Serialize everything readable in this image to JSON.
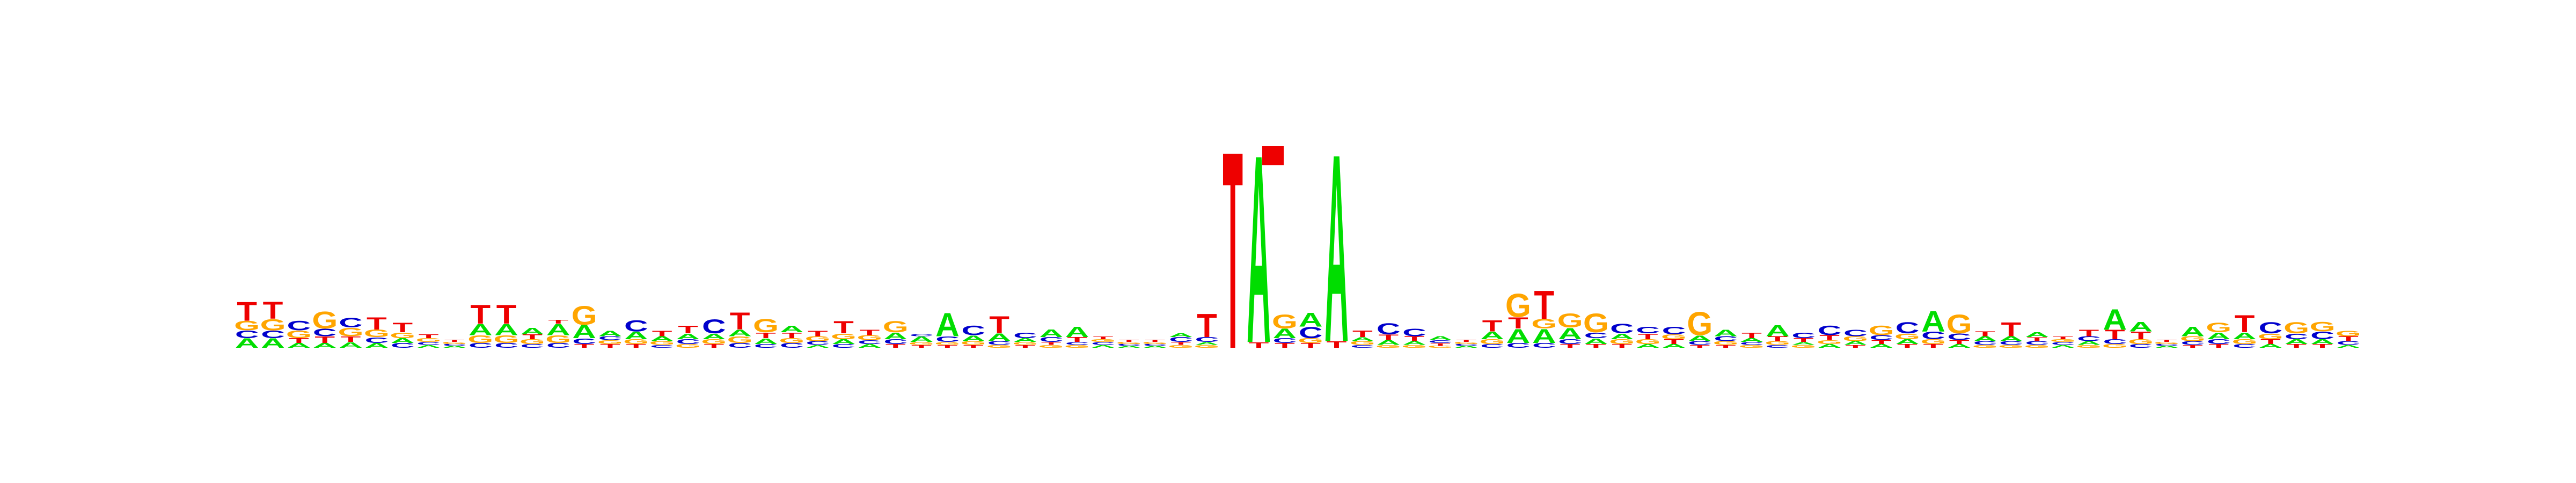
{
  "colors": {
    "A": "#00dd00",
    "C": "#0000cc",
    "G": "#ffa500",
    "T": "#ee0000"
  },
  "logo": {
    "columns": [
      [
        [
          "A",
          0.1
        ],
        [
          "C",
          0.08
        ],
        [
          "G",
          0.1
        ],
        [
          "T",
          0.2
        ]
      ],
      [
        [
          "A",
          0.1
        ],
        [
          "C",
          0.08
        ],
        [
          "G",
          0.12
        ],
        [
          "T",
          0.18
        ]
      ],
      [
        [
          "A",
          0.05
        ],
        [
          "T",
          0.05
        ],
        [
          "G",
          0.08
        ],
        [
          "C",
          0.1
        ]
      ],
      [
        [
          "A",
          0.05
        ],
        [
          "T",
          0.07
        ],
        [
          "C",
          0.08
        ],
        [
          "G",
          0.18
        ]
      ],
      [
        [
          "A",
          0.06
        ],
        [
          "T",
          0.06
        ],
        [
          "G",
          0.09
        ],
        [
          "C",
          0.1
        ]
      ],
      [
        [
          "A",
          0.05
        ],
        [
          "C",
          0.06
        ],
        [
          "G",
          0.08
        ],
        [
          "T",
          0.13
        ]
      ],
      [
        [
          "C",
          0.05
        ],
        [
          "A",
          0.05
        ],
        [
          "G",
          0.06
        ],
        [
          "T",
          0.1
        ]
      ],
      [
        [
          "A",
          0.03
        ],
        [
          "C",
          0.03
        ],
        [
          "G",
          0.04
        ],
        [
          "T",
          0.04
        ]
      ],
      [
        [
          "A",
          0.02
        ],
        [
          "C",
          0.02
        ],
        [
          "G",
          0.02
        ],
        [
          "T",
          0.02
        ]
      ],
      [
        [
          "C",
          0.05
        ],
        [
          "G",
          0.08
        ],
        [
          "A",
          0.12
        ],
        [
          "T",
          0.2
        ]
      ],
      [
        [
          "C",
          0.05
        ],
        [
          "G",
          0.08
        ],
        [
          "A",
          0.12
        ],
        [
          "T",
          0.2
        ]
      ],
      [
        [
          "C",
          0.04
        ],
        [
          "G",
          0.05
        ],
        [
          "T",
          0.05
        ],
        [
          "A",
          0.07
        ]
      ],
      [
        [
          "C",
          0.05
        ],
        [
          "G",
          0.08
        ],
        [
          "A",
          0.12
        ],
        [
          "T",
          0.04
        ]
      ],
      [
        [
          "T",
          0.04
        ],
        [
          "C",
          0.06
        ],
        [
          "A",
          0.14
        ],
        [
          "G",
          0.2
        ]
      ],
      [
        [
          "T",
          0.04
        ],
        [
          "G",
          0.04
        ],
        [
          "C",
          0.04
        ],
        [
          "A",
          0.06
        ]
      ],
      [
        [
          "T",
          0.04
        ],
        [
          "G",
          0.05
        ],
        [
          "A",
          0.08
        ],
        [
          "C",
          0.12
        ]
      ],
      [
        [
          "C",
          0.03
        ],
        [
          "G",
          0.04
        ],
        [
          "A",
          0.05
        ],
        [
          "T",
          0.06
        ]
      ],
      [
        [
          "G",
          0.04
        ],
        [
          "C",
          0.05
        ],
        [
          "A",
          0.06
        ],
        [
          "T",
          0.08
        ]
      ],
      [
        [
          "T",
          0.04
        ],
        [
          "G",
          0.05
        ],
        [
          "A",
          0.06
        ],
        [
          "C",
          0.15
        ]
      ],
      [
        [
          "C",
          0.05
        ],
        [
          "G",
          0.07
        ],
        [
          "A",
          0.07
        ],
        [
          "T",
          0.18
        ]
      ],
      [
        [
          "C",
          0.04
        ],
        [
          "A",
          0.06
        ],
        [
          "T",
          0.06
        ],
        [
          "G",
          0.14
        ]
      ],
      [
        [
          "C",
          0.05
        ],
        [
          "G",
          0.05
        ],
        [
          "T",
          0.06
        ],
        [
          "A",
          0.07
        ]
      ],
      [
        [
          "A",
          0.03
        ],
        [
          "C",
          0.04
        ],
        [
          "G",
          0.05
        ],
        [
          "T",
          0.06
        ]
      ],
      [
        [
          "C",
          0.04
        ],
        [
          "A",
          0.05
        ],
        [
          "G",
          0.06
        ],
        [
          "T",
          0.13
        ]
      ],
      [
        [
          "A",
          0.04
        ],
        [
          "C",
          0.04
        ],
        [
          "G",
          0.05
        ],
        [
          "T",
          0.06
        ]
      ],
      [
        [
          "T",
          0.04
        ],
        [
          "C",
          0.05
        ],
        [
          "A",
          0.07
        ],
        [
          "G",
          0.12
        ]
      ],
      [
        [
          "T",
          0.03
        ],
        [
          "G",
          0.03
        ],
        [
          "A",
          0.06
        ],
        [
          "C",
          0.02
        ]
      ],
      [
        [
          "T",
          0.03
        ],
        [
          "G",
          0.03
        ],
        [
          "C",
          0.06
        ],
        [
          "A",
          0.25
        ]
      ],
      [
        [
          "T",
          0.03
        ],
        [
          "G",
          0.04
        ],
        [
          "A",
          0.06
        ],
        [
          "C",
          0.1
        ]
      ],
      [
        [
          "G",
          0.03
        ],
        [
          "C",
          0.04
        ],
        [
          "A",
          0.08
        ],
        [
          "T",
          0.18
        ]
      ],
      [
        [
          "T",
          0.03
        ],
        [
          "G",
          0.03
        ],
        [
          "A",
          0.04
        ],
        [
          "C",
          0.06
        ]
      ],
      [
        [
          "G",
          0.03
        ],
        [
          "T",
          0.03
        ],
        [
          "C",
          0.05
        ],
        [
          "A",
          0.08
        ]
      ],
      [
        [
          "G",
          0.03
        ],
        [
          "C",
          0.03
        ],
        [
          "T",
          0.05
        ],
        [
          "A",
          0.11
        ]
      ],
      [
        [
          "A",
          0.03
        ],
        [
          "C",
          0.03
        ],
        [
          "G",
          0.03
        ],
        [
          "T",
          0.03
        ]
      ],
      [
        [
          "A",
          0.02
        ],
        [
          "C",
          0.02
        ],
        [
          "G",
          0.02
        ],
        [
          "T",
          0.02
        ]
      ],
      [
        [
          "A",
          0.02
        ],
        [
          "C",
          0.02
        ],
        [
          "G",
          0.02
        ],
        [
          "T",
          0.02
        ]
      ],
      [
        [
          "G",
          0.03
        ],
        [
          "T",
          0.03
        ],
        [
          "C",
          0.05
        ],
        [
          "A",
          0.04
        ]
      ],
      [
        [
          "G",
          0.03
        ],
        [
          "A",
          0.03
        ],
        [
          "C",
          0.05
        ],
        [
          "T",
          0.25
        ]
      ],
      [
        [
          "T",
          2.1
        ]
      ],
      [
        [
          "T",
          0.06
        ],
        [
          "A",
          2.0
        ]
      ],
      [
        [
          "T",
          0.05
        ],
        [
          "C",
          0.05
        ],
        [
          "A",
          0.1
        ],
        [
          "G",
          0.15
        ]
      ],
      [
        [
          "T",
          0.05
        ],
        [
          "G",
          0.05
        ],
        [
          "C",
          0.12
        ],
        [
          "A",
          0.15
        ]
      ],
      [
        [
          "T",
          0.07
        ],
        [
          "A",
          2.0
        ]
      ],
      [
        [
          "C",
          0.03
        ],
        [
          "G",
          0.04
        ],
        [
          "A",
          0.04
        ],
        [
          "T",
          0.07
        ]
      ],
      [
        [
          "G",
          0.03
        ],
        [
          "A",
          0.05
        ],
        [
          "T",
          0.06
        ],
        [
          "C",
          0.12
        ]
      ],
      [
        [
          "G",
          0.03
        ],
        [
          "A",
          0.04
        ],
        [
          "T",
          0.05
        ],
        [
          "C",
          0.08
        ]
      ],
      [
        [
          "G",
          0.02
        ],
        [
          "T",
          0.03
        ],
        [
          "C",
          0.03
        ],
        [
          "A",
          0.04
        ]
      ],
      [
        [
          "A",
          0.02
        ],
        [
          "C",
          0.02
        ],
        [
          "G",
          0.02
        ],
        [
          "T",
          0.02
        ]
      ],
      [
        [
          "C",
          0.04
        ],
        [
          "G",
          0.05
        ],
        [
          "A",
          0.08
        ],
        [
          "T",
          0.12
        ]
      ],
      [
        [
          "C",
          0.05
        ],
        [
          "A",
          0.15
        ],
        [
          "T",
          0.12
        ],
        [
          "G",
          0.25
        ]
      ],
      [
        [
          "C",
          0.05
        ],
        [
          "A",
          0.15
        ],
        [
          "G",
          0.1
        ],
        [
          "T",
          0.3
        ]
      ],
      [
        [
          "T",
          0.04
        ],
        [
          "C",
          0.05
        ],
        [
          "A",
          0.12
        ],
        [
          "G",
          0.15
        ]
      ],
      [
        [
          "T",
          0.04
        ],
        [
          "A",
          0.06
        ],
        [
          "C",
          0.06
        ],
        [
          "G",
          0.2
        ]
      ],
      [
        [
          "T",
          0.04
        ],
        [
          "G",
          0.05
        ],
        [
          "A",
          0.06
        ],
        [
          "C",
          0.1
        ]
      ],
      [
        [
          "A",
          0.04
        ],
        [
          "G",
          0.05
        ],
        [
          "T",
          0.06
        ],
        [
          "C",
          0.07
        ]
      ],
      [
        [
          "A",
          0.04
        ],
        [
          "T",
          0.05
        ],
        [
          "G",
          0.05
        ],
        [
          "C",
          0.08
        ]
      ],
      [
        [
          "T",
          0.03
        ],
        [
          "C",
          0.04
        ],
        [
          "A",
          0.06
        ],
        [
          "G",
          0.25
        ]
      ],
      [
        [
          "T",
          0.03
        ],
        [
          "G",
          0.04
        ],
        [
          "C",
          0.05
        ],
        [
          "A",
          0.07
        ]
      ],
      [
        [
          "G",
          0.03
        ],
        [
          "C",
          0.03
        ],
        [
          "A",
          0.04
        ],
        [
          "T",
          0.06
        ]
      ],
      [
        [
          "C",
          0.03
        ],
        [
          "G",
          0.04
        ],
        [
          "T",
          0.05
        ],
        [
          "A",
          0.12
        ]
      ],
      [
        [
          "G",
          0.03
        ],
        [
          "A",
          0.03
        ],
        [
          "T",
          0.04
        ],
        [
          "C",
          0.06
        ]
      ],
      [
        [
          "A",
          0.04
        ],
        [
          "G",
          0.04
        ],
        [
          "T",
          0.05
        ],
        [
          "C",
          0.1
        ]
      ],
      [
        [
          "T",
          0.03
        ],
        [
          "A",
          0.04
        ],
        [
          "G",
          0.05
        ],
        [
          "C",
          0.07
        ]
      ],
      [
        [
          "A",
          0.04
        ],
        [
          "T",
          0.04
        ],
        [
          "C",
          0.05
        ],
        [
          "G",
          0.1
        ]
      ],
      [
        [
          "T",
          0.04
        ],
        [
          "A",
          0.05
        ],
        [
          "G",
          0.06
        ],
        [
          "C",
          0.12
        ]
      ],
      [
        [
          "T",
          0.04
        ],
        [
          "G",
          0.05
        ],
        [
          "C",
          0.08
        ],
        [
          "A",
          0.22
        ]
      ],
      [
        [
          "A",
          0.04
        ],
        [
          "T",
          0.04
        ],
        [
          "C",
          0.07
        ],
        [
          "G",
          0.2
        ]
      ],
      [
        [
          "G",
          0.03
        ],
        [
          "C",
          0.04
        ],
        [
          "A",
          0.05
        ],
        [
          "T",
          0.05
        ]
      ],
      [
        [
          "G",
          0.03
        ],
        [
          "C",
          0.04
        ],
        [
          "A",
          0.05
        ],
        [
          "T",
          0.15
        ]
      ],
      [
        [
          "G",
          0.03
        ],
        [
          "C",
          0.04
        ],
        [
          "T",
          0.04
        ],
        [
          "A",
          0.05
        ]
      ],
      [
        [
          "A",
          0.03
        ],
        [
          "C",
          0.03
        ],
        [
          "G",
          0.03
        ],
        [
          "T",
          0.03
        ]
      ],
      [
        [
          "G",
          0.03
        ],
        [
          "A",
          0.04
        ],
        [
          "C",
          0.05
        ],
        [
          "T",
          0.07
        ]
      ],
      [
        [
          "G",
          0.04
        ],
        [
          "C",
          0.05
        ],
        [
          "T",
          0.1
        ],
        [
          "A",
          0.22
        ]
      ],
      [
        [
          "C",
          0.04
        ],
        [
          "G",
          0.05
        ],
        [
          "T",
          0.08
        ],
        [
          "A",
          0.1
        ]
      ],
      [
        [
          "A",
          0.02
        ],
        [
          "C",
          0.02
        ],
        [
          "G",
          0.02
        ],
        [
          "T",
          0.02
        ]
      ],
      [
        [
          "T",
          0.03
        ],
        [
          "C",
          0.04
        ],
        [
          "G",
          0.05
        ],
        [
          "A",
          0.1
        ]
      ],
      [
        [
          "T",
          0.04
        ],
        [
          "C",
          0.05
        ],
        [
          "A",
          0.07
        ],
        [
          "G",
          0.1
        ]
      ],
      [
        [
          "C",
          0.04
        ],
        [
          "G",
          0.05
        ],
        [
          "A",
          0.07
        ],
        [
          "T",
          0.18
        ]
      ],
      [
        [
          "A",
          0.04
        ],
        [
          "T",
          0.05
        ],
        [
          "G",
          0.06
        ],
        [
          "C",
          0.12
        ]
      ],
      [
        [
          "T",
          0.04
        ],
        [
          "A",
          0.05
        ],
        [
          "C",
          0.06
        ],
        [
          "G",
          0.12
        ]
      ],
      [
        [
          "T",
          0.04
        ],
        [
          "A",
          0.05
        ],
        [
          "C",
          0.08
        ],
        [
          "G",
          0.1
        ]
      ],
      [
        [
          "A",
          0.03
        ],
        [
          "C",
          0.04
        ],
        [
          "T",
          0.05
        ],
        [
          "G",
          0.06
        ]
      ]
    ]
  }
}
